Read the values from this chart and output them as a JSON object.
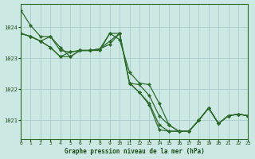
{
  "title": "Graphe pression niveau de la mer (hPa)",
  "bg_color": "#cce8e3",
  "grid_color": "#aacccc",
  "line_color": "#2d6b2d",
  "text_color": "#1a4d1a",
  "xlim": [
    0,
    23
  ],
  "ylim": [
    1020.4,
    1024.75
  ],
  "yticks": [
    1021,
    1022,
    1023,
    1024
  ],
  "xticks": [
    0,
    1,
    2,
    3,
    4,
    5,
    6,
    7,
    8,
    9,
    10,
    11,
    12,
    13,
    14,
    15,
    16,
    17,
    18,
    19,
    20,
    21,
    22,
    23
  ],
  "series": [
    [
      1024.55,
      1024.05,
      1023.7,
      1023.7,
      1023.35,
      1023.05,
      1023.25,
      1023.25,
      1023.25,
      1023.8,
      1023.6,
      1022.55,
      1022.2,
      1022.15,
      1021.55,
      1020.85,
      1020.65,
      1020.65,
      1021.0,
      1021.4,
      1020.9,
      1021.15,
      1021.2,
      1021.15
    ],
    [
      1023.8,
      1023.7,
      1023.55,
      1023.7,
      1023.25,
      1023.2,
      1023.25,
      1023.25,
      1023.3,
      1023.8,
      1023.8,
      1022.2,
      1022.15,
      1021.8,
      1021.15,
      1020.85,
      1020.65,
      1020.65,
      1021.0,
      1021.4,
      1020.9,
      1021.15,
      1021.2,
      1021.15
    ],
    [
      1023.8,
      1023.7,
      1023.55,
      1023.35,
      1023.05,
      1023.2,
      1023.25,
      1023.25,
      1023.3,
      1023.55,
      1023.8,
      1022.2,
      1021.9,
      1021.55,
      1020.85,
      1020.65,
      1020.65,
      1020.65,
      1021.0,
      1021.4,
      1020.9,
      1021.15,
      1021.2,
      1021.15
    ],
    [
      1023.8,
      1023.7,
      1023.55,
      1023.35,
      1023.05,
      1023.05,
      1023.25,
      1023.25,
      1023.3,
      1023.45,
      1023.8,
      1022.2,
      1021.9,
      1021.5,
      1020.7,
      1020.65,
      1020.65,
      1020.65,
      1021.0,
      1021.4,
      1020.9,
      1021.15,
      1021.2,
      1021.15
    ]
  ],
  "markersize": 2.2,
  "linewidth": 0.9
}
